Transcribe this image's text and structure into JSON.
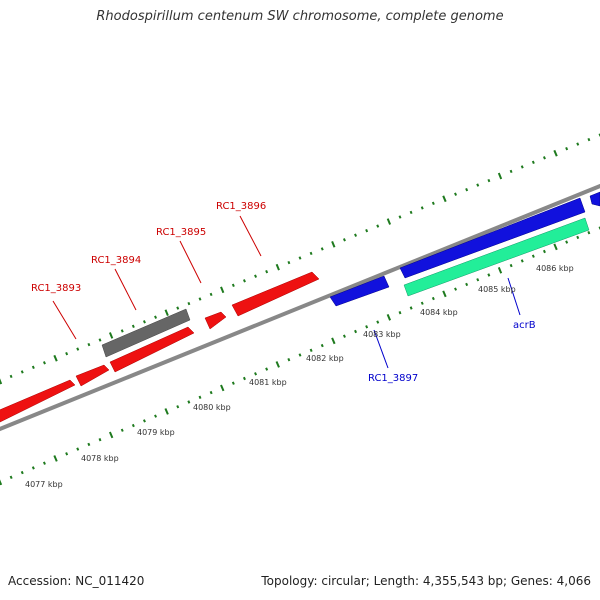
{
  "title": "Rhodospirillum centenum SW chromosome, complete genome",
  "footer": {
    "accession": "Accession: NC_011420",
    "summary": "Topology: circular; Length: 4,355,543 bp; Genes: 4,066"
  },
  "colors": {
    "backbone": "#888888",
    "tick": "#1e7a1e",
    "gene_forward": "#ee1111",
    "gene_reverse": "#1111dd",
    "gene_other": "#666666",
    "gene_highlight": "#22ee99",
    "label_forward": "#cc0000",
    "label_reverse": "#0000cc"
  },
  "scale_labels": [
    {
      "text": "4077 kbp"
    },
    {
      "text": "4078 kbp"
    },
    {
      "text": "4079 kbp"
    },
    {
      "text": "4080 kbp"
    },
    {
      "text": "4081 kbp"
    },
    {
      "text": "4082 kbp"
    },
    {
      "text": "4083 kbp"
    },
    {
      "text": "4084 kbp"
    },
    {
      "text": "4085 kbp"
    },
    {
      "text": "4086 kbp"
    }
  ],
  "genes": [
    {
      "name": "RC1_3893",
      "strand": "forward"
    },
    {
      "name": "RC1_3894",
      "strand": "forward"
    },
    {
      "name": "RC1_3895",
      "strand": "forward"
    },
    {
      "name": "RC1_3896",
      "strand": "forward"
    },
    {
      "name": "RC1_3897",
      "strand": "reverse"
    },
    {
      "name": "acrB",
      "strand": "reverse"
    }
  ]
}
